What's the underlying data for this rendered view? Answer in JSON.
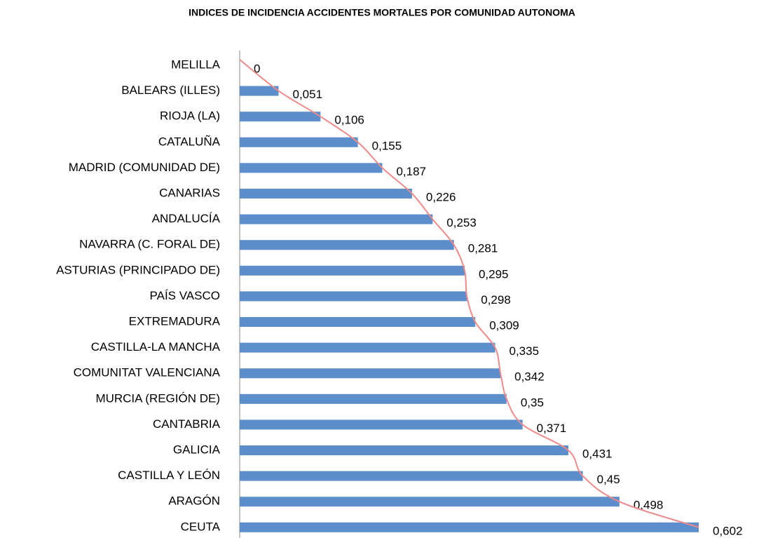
{
  "chart_data": {
    "type": "bar",
    "orientation": "horizontal",
    "title": "INDICES DE INCIDENCIA ACCIDENTES MORTALES POR COMUNIDAD AUTONOMA",
    "categories": [
      "MELILLA",
      "BALEARS (ILLES)",
      "RIOJA (LA)",
      "CATALUÑA",
      "MADRID (COMUNIDAD DE)",
      "CANARIAS",
      "ANDALUCÍA",
      "NAVARRA (C. FORAL DE)",
      "ASTURIAS (PRINCIPADO DE)",
      "PAÍS VASCO",
      "EXTREMADURA",
      "CASTILLA-LA MANCHA",
      "COMUNITAT VALENCIANA",
      "MURCIA (REGIÓN DE)",
      "CANTABRIA",
      "GALICIA",
      "CASTILLA Y LEÓN",
      "ARAGÓN",
      "CEUTA"
    ],
    "values": [
      0,
      0.051,
      0.106,
      0.155,
      0.187,
      0.226,
      0.253,
      0.281,
      0.295,
      0.298,
      0.309,
      0.335,
      0.342,
      0.35,
      0.371,
      0.431,
      0.45,
      0.498,
      0.602
    ],
    "value_labels": [
      "0",
      "0,051",
      "0,106",
      "0,155",
      "0,187",
      "0,226",
      "0,253",
      "0,281",
      "0,295",
      "0,298",
      "0,309",
      "0,335",
      "0,342",
      "0,35",
      "0,371",
      "0,431",
      "0,45",
      "0,498",
      "0,602"
    ],
    "color": "#5b8ecb",
    "trendline_color": "#f08a8a",
    "xlim": [
      0,
      0.602
    ]
  }
}
